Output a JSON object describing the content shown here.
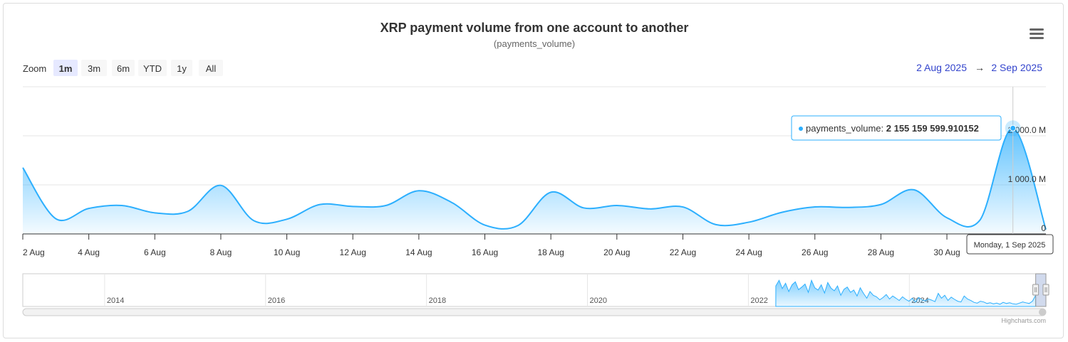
{
  "chart_data": {
    "type": "area",
    "title": "XRP payment volume from one account to another",
    "subtitle": "(payments_volume)",
    "series": [
      {
        "name": "payments_volume",
        "unit": "M",
        "color": "#2caffe",
        "x": [
          "2 Aug",
          "3 Aug",
          "4 Aug",
          "5 Aug",
          "6 Aug",
          "7 Aug",
          "8 Aug",
          "9 Aug",
          "10 Aug",
          "11 Aug",
          "12 Aug",
          "13 Aug",
          "14 Aug",
          "15 Aug",
          "16 Aug",
          "17 Aug",
          "18 Aug",
          "19 Aug",
          "20 Aug",
          "21 Aug",
          "22 Aug",
          "23 Aug",
          "24 Aug",
          "25 Aug",
          "26 Aug",
          "27 Aug",
          "28 Aug",
          "29 Aug",
          "30 Aug",
          "31 Aug",
          "1 Sep",
          "2 Sep"
        ],
        "values": [
          1350,
          310,
          520,
          580,
          430,
          460,
          990,
          270,
          300,
          600,
          560,
          580,
          880,
          640,
          180,
          170,
          850,
          530,
          580,
          510,
          550,
          190,
          240,
          440,
          550,
          540,
          600,
          900,
          330,
          280,
          2155,
          90
        ]
      }
    ],
    "y_ticks": [
      "0",
      "1 000.0 M",
      "2 000.0 M"
    ],
    "y_range": [
      0,
      3000
    ],
    "x_ticks": [
      "2 Aug",
      "4 Aug",
      "6 Aug",
      "8 Aug",
      "10 Aug",
      "12 Aug",
      "14 Aug",
      "16 Aug",
      "18 Aug",
      "20 Aug",
      "22 Aug",
      "24 Aug",
      "26 Aug",
      "28 Aug",
      "30 Aug"
    ],
    "grid": true,
    "legend": "none",
    "tooltip": {
      "series_label": "payments_volume:",
      "value": "2 155 159 599.910152",
      "date_label": "Monday, 1 Sep 2025",
      "index": 30
    },
    "navigator": {
      "year_labels": [
        "2014",
        "2016",
        "2018",
        "2020",
        "2022",
        "2024"
      ],
      "year_positions": [
        0.0,
        0.1573,
        0.3146,
        0.4719,
        0.6292,
        0.7865
      ],
      "data_start_fraction": 0.736,
      "selected_range_fraction": [
        0.99,
        1.0
      ],
      "values": [
        55,
        70,
        48,
        62,
        40,
        58,
        66,
        45,
        52,
        60,
        38,
        70,
        50,
        44,
        58,
        36,
        64,
        49,
        42,
        55,
        30,
        46,
        52,
        38,
        44,
        28,
        50,
        35,
        22,
        40,
        30,
        26,
        18,
        24,
        32,
        20,
        28,
        22,
        16,
        26,
        19,
        14,
        22,
        12,
        24,
        18,
        15,
        20,
        17,
        13,
        35,
        22,
        30,
        16,
        25,
        19,
        14,
        12,
        28,
        20,
        16,
        11,
        9,
        14,
        12,
        8,
        10,
        7,
        9,
        6,
        11,
        8,
        10,
        7,
        6,
        9,
        12,
        10,
        8,
        14,
        30
      ]
    }
  },
  "zoom": {
    "label": "Zoom",
    "buttons": [
      "1m",
      "3m",
      "6m",
      "YTD",
      "1y",
      "All"
    ],
    "selected": 0
  },
  "range": {
    "from": "2 Aug 2025",
    "arrow": "→",
    "to": "2 Sep 2025"
  },
  "menu_icon": "hamburger-menu-icon",
  "credits": "Highcharts.com",
  "colors": {
    "accent": "#2caffe",
    "range_text": "#3344cc",
    "zoom_selected_bg": "#e6e9ff",
    "button_bg": "#f7f7f7"
  }
}
